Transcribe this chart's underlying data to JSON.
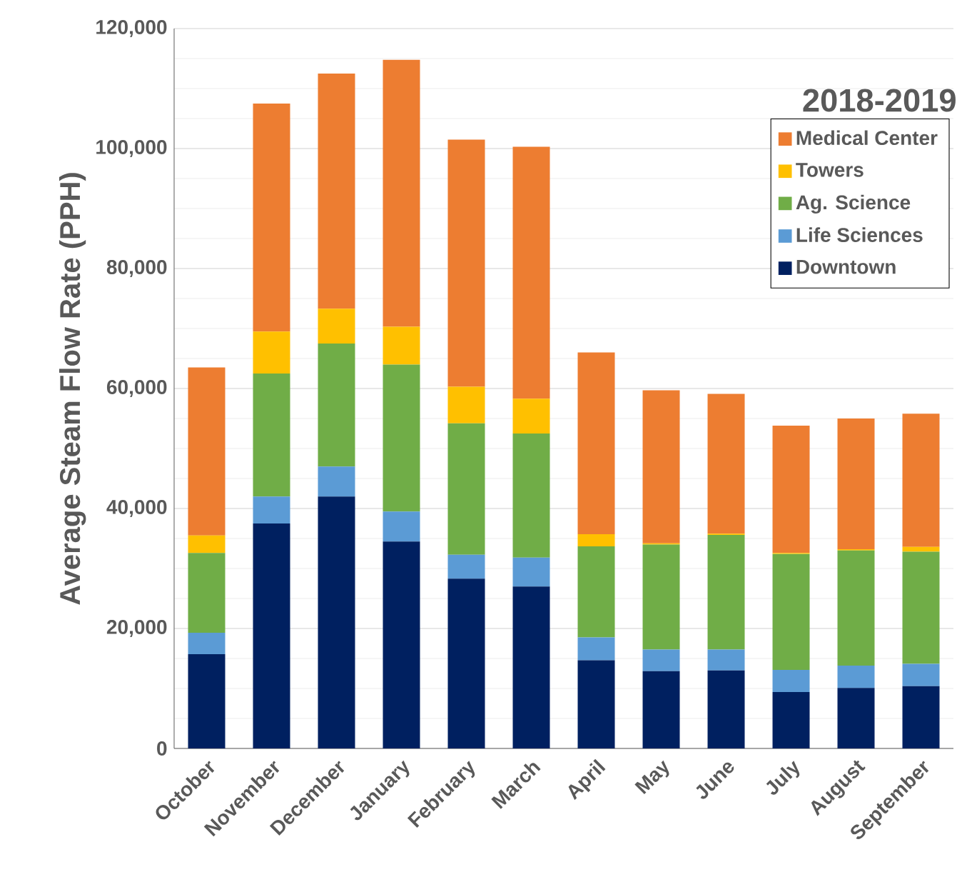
{
  "chart_data": {
    "type": "bar",
    "stacked": true,
    "ylabel": "Average Steam Flow Rate (PPH)",
    "legend_title": "2018-2019",
    "legend": "top right",
    "grid": "y",
    "categories": [
      "October",
      "November",
      "December",
      "January",
      "February",
      "March",
      "April",
      "May",
      "June",
      "July",
      "August",
      "September"
    ],
    "ylim": [
      0,
      120000
    ],
    "yticks": [
      {
        "value": 0,
        "label": "0"
      },
      {
        "value": 20000,
        "label": "20,000"
      },
      {
        "value": 40000,
        "label": "40,000"
      },
      {
        "value": 60000,
        "label": "60,000"
      },
      {
        "value": 80000,
        "label": "80,000"
      },
      {
        "value": 100000,
        "label": "100,000"
      },
      {
        "value": 120000,
        "label": "120,000"
      }
    ],
    "series": [
      {
        "name": "Downtown",
        "color": "#002060",
        "values": [
          15700,
          37500,
          42000,
          34500,
          28300,
          27000,
          14700,
          12900,
          13000,
          9400,
          10100,
          10400
        ]
      },
      {
        "name": "Life Sciences",
        "color": "#5b9bd5",
        "values": [
          3600,
          4500,
          5000,
          5000,
          4000,
          4800,
          3800,
          3600,
          3500,
          3700,
          3700,
          3700
        ]
      },
      {
        "name": "Ag. Science",
        "color": "#70ad47",
        "values": [
          13300,
          20500,
          20500,
          24500,
          21900,
          20700,
          15200,
          17500,
          19100,
          19300,
          19200,
          18700
        ]
      },
      {
        "name": "Towers",
        "color": "#ffc000",
        "values": [
          2900,
          7000,
          5800,
          6300,
          6100,
          5800,
          2000,
          200,
          200,
          200,
          200,
          800
        ]
      },
      {
        "name": "Medical Center",
        "color": "#ed7d31",
        "values": [
          28000,
          38000,
          39200,
          44500,
          41200,
          42000,
          30300,
          25500,
          23300,
          21200,
          21800,
          22200
        ]
      }
    ]
  }
}
